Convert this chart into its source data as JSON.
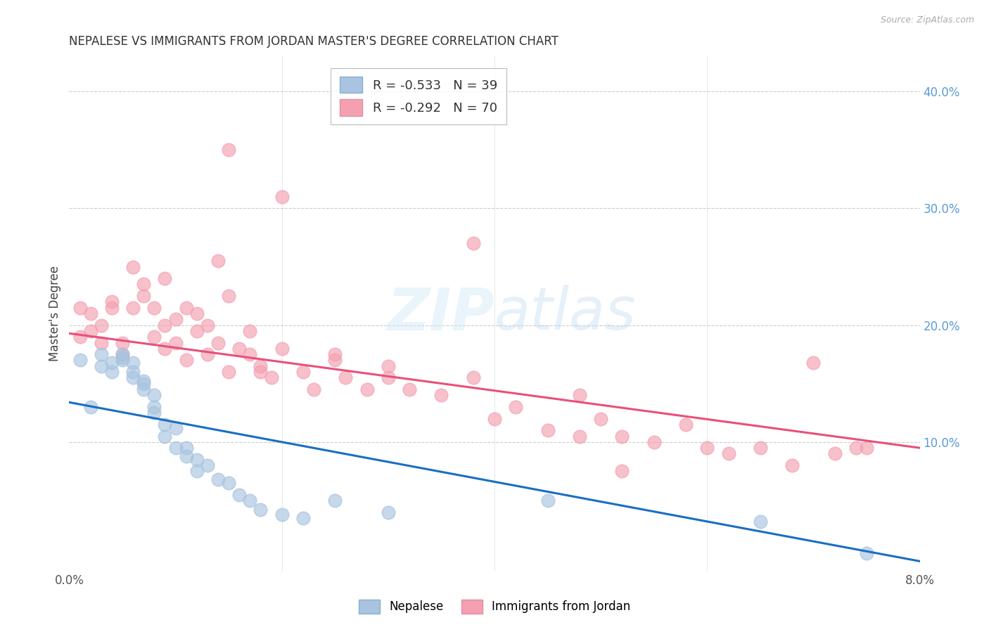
{
  "title": "NEPALESE VS IMMIGRANTS FROM JORDAN MASTER'S DEGREE CORRELATION CHART",
  "source": "Source: ZipAtlas.com",
  "ylabel": "Master's Degree",
  "watermark": "ZIPatlas",
  "right_yticks": [
    "40.0%",
    "30.0%",
    "20.0%",
    "10.0%"
  ],
  "right_ytick_vals": [
    0.4,
    0.3,
    0.2,
    0.1
  ],
  "xlim": [
    0.0,
    0.08
  ],
  "ylim": [
    -0.01,
    0.43
  ],
  "legend1_label": "R = -0.533   N = 39",
  "legend2_label": "R = -0.292   N = 70",
  "nepalese_color": "#a8c4e0",
  "jordan_color": "#f4a0b0",
  "line_blue": "#1a6ec2",
  "line_pink": "#e8507a",
  "right_axis_color": "#5b9bd5",
  "background_color": "#ffffff",
  "nepalese_x": [
    0.001,
    0.002,
    0.003,
    0.003,
    0.004,
    0.004,
    0.005,
    0.005,
    0.005,
    0.006,
    0.006,
    0.006,
    0.007,
    0.007,
    0.007,
    0.008,
    0.008,
    0.008,
    0.009,
    0.009,
    0.01,
    0.01,
    0.011,
    0.011,
    0.012,
    0.012,
    0.013,
    0.014,
    0.015,
    0.016,
    0.017,
    0.018,
    0.02,
    0.022,
    0.025,
    0.03,
    0.045,
    0.065,
    0.075
  ],
  "nepalese_y": [
    0.17,
    0.13,
    0.165,
    0.175,
    0.16,
    0.168,
    0.17,
    0.172,
    0.175,
    0.168,
    0.155,
    0.16,
    0.145,
    0.15,
    0.152,
    0.14,
    0.13,
    0.125,
    0.115,
    0.105,
    0.112,
    0.095,
    0.095,
    0.088,
    0.085,
    0.075,
    0.08,
    0.068,
    0.065,
    0.055,
    0.05,
    0.042,
    0.038,
    0.035,
    0.05,
    0.04,
    0.05,
    0.032,
    0.005
  ],
  "jordan_x": [
    0.001,
    0.001,
    0.002,
    0.002,
    0.003,
    0.003,
    0.004,
    0.004,
    0.005,
    0.005,
    0.006,
    0.006,
    0.007,
    0.007,
    0.008,
    0.008,
    0.009,
    0.009,
    0.009,
    0.01,
    0.01,
    0.011,
    0.011,
    0.012,
    0.012,
    0.013,
    0.013,
    0.014,
    0.014,
    0.015,
    0.015,
    0.016,
    0.017,
    0.018,
    0.018,
    0.019,
    0.02,
    0.022,
    0.023,
    0.025,
    0.026,
    0.028,
    0.03,
    0.032,
    0.035,
    0.038,
    0.04,
    0.042,
    0.045,
    0.048,
    0.05,
    0.052,
    0.055,
    0.058,
    0.06,
    0.062,
    0.065,
    0.068,
    0.07,
    0.072,
    0.074,
    0.075,
    0.038,
    0.048,
    0.015,
    0.025,
    0.03,
    0.052,
    0.02,
    0.017
  ],
  "jordan_y": [
    0.19,
    0.215,
    0.195,
    0.21,
    0.185,
    0.2,
    0.215,
    0.22,
    0.175,
    0.185,
    0.215,
    0.25,
    0.225,
    0.235,
    0.19,
    0.215,
    0.2,
    0.24,
    0.18,
    0.205,
    0.185,
    0.215,
    0.17,
    0.195,
    0.21,
    0.2,
    0.175,
    0.185,
    0.255,
    0.16,
    0.225,
    0.18,
    0.195,
    0.16,
    0.165,
    0.155,
    0.31,
    0.16,
    0.145,
    0.175,
    0.155,
    0.145,
    0.155,
    0.145,
    0.14,
    0.155,
    0.12,
    0.13,
    0.11,
    0.105,
    0.12,
    0.105,
    0.1,
    0.115,
    0.095,
    0.09,
    0.095,
    0.08,
    0.168,
    0.09,
    0.095,
    0.095,
    0.27,
    0.14,
    0.35,
    0.17,
    0.165,
    0.075,
    0.18,
    0.175
  ],
  "blue_line_x": [
    0.0,
    0.08
  ],
  "blue_line_y": [
    0.134,
    -0.002
  ],
  "pink_line_x": [
    0.0,
    0.08
  ],
  "pink_line_y": [
    0.193,
    0.095
  ]
}
